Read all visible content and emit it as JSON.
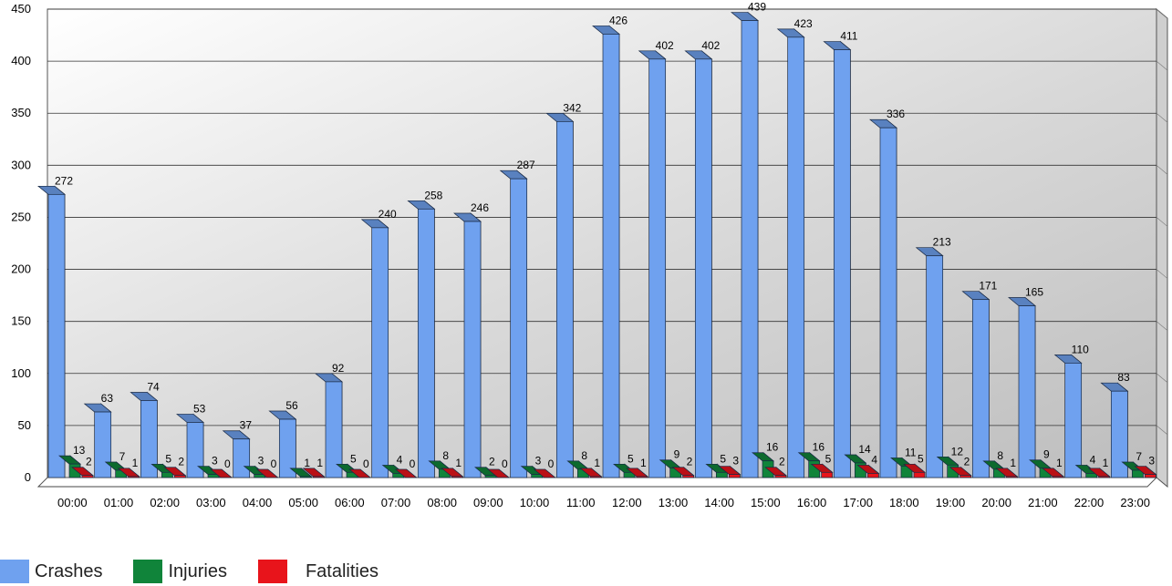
{
  "chart_data": {
    "type": "bar",
    "title": "",
    "xlabel": "",
    "ylabel": "",
    "ylim": [
      0,
      450
    ],
    "yticks": [
      "0",
      "50",
      "100",
      "150",
      "200",
      "250",
      "300",
      "350",
      "400",
      "450"
    ],
    "grid": true,
    "legend_position": "bottom-left",
    "categories": [
      "00:00",
      "01:00",
      "02:00",
      "03:00",
      "04:00",
      "05:00",
      "06:00",
      "07:00",
      "08:00",
      "09:00",
      "10:00",
      "11:00",
      "12:00",
      "13:00",
      "14:00",
      "15:00",
      "16:00",
      "17:00",
      "18:00",
      "19:00",
      "20:00",
      "21:00",
      "22:00",
      "23:00"
    ],
    "series": [
      {
        "name": "Crashes",
        "color": "#6fa1ef",
        "values": [
          272,
          63,
          74,
          53,
          37,
          56,
          92,
          240,
          258,
          246,
          287,
          342,
          426,
          402,
          402,
          439,
          423,
          411,
          336,
          213,
          171,
          165,
          110,
          83
        ]
      },
      {
        "name": "Injuries",
        "color": "#10843a",
        "values": [
          13,
          7,
          5,
          3,
          3,
          1,
          5,
          4,
          8,
          2,
          3,
          8,
          5,
          9,
          5,
          16,
          16,
          14,
          11,
          12,
          8,
          9,
          4,
          7
        ]
      },
      {
        "name": "Fatalities",
        "color": "#e8141b",
        "values": [
          2,
          1,
          2,
          0,
          0,
          1,
          0,
          0,
          1,
          0,
          0,
          1,
          1,
          2,
          3,
          2,
          5,
          4,
          5,
          2,
          1,
          1,
          1,
          3
        ]
      }
    ]
  }
}
